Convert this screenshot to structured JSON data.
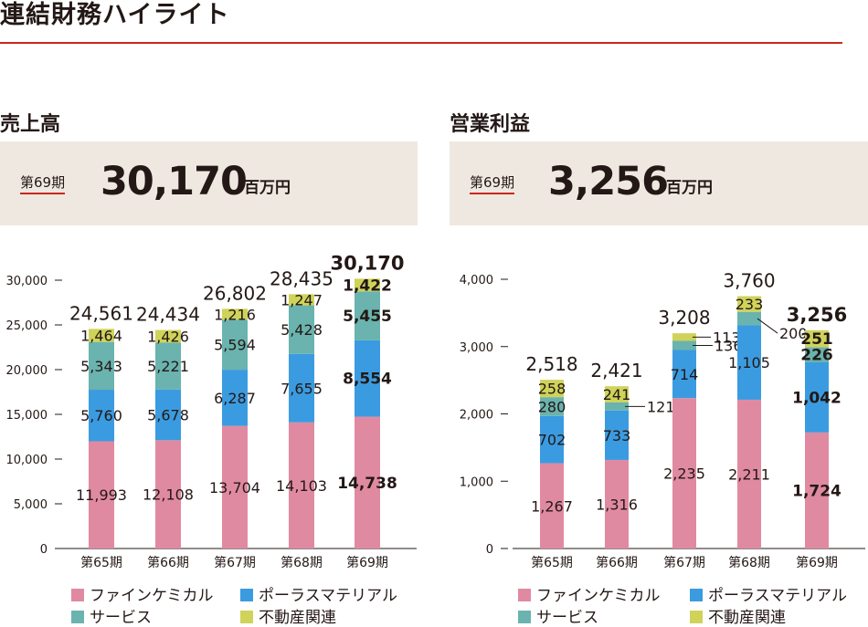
{
  "page_title": "連結財務ハイライト",
  "colors": {
    "fine_chemical": "#e08aa1",
    "polar_material": "#3b9be0",
    "service": "#6ab3ae",
    "real_estate": "#cfd35a",
    "accent": "#c8281e",
    "box_bg": "#efe8e1"
  },
  "sales": {
    "section_title": "売上高",
    "summary": {
      "period": "第69期",
      "value": "30,170",
      "unit": "百万円"
    }
  },
  "profit": {
    "section_title": "営業利益",
    "summary": {
      "period": "第69期",
      "value": "3,256",
      "unit": "百万円"
    }
  },
  "legend": {
    "fine_chemical": "ファインケミカル",
    "polar_material": "ポーラスマテリアル",
    "service": "サービス",
    "real_estate": "不動産関連"
  },
  "chart_data": [
    {
      "type": "bar",
      "stacked": true,
      "title": "売上高",
      "categories": [
        "第65期",
        "第66期",
        "第67期",
        "第68期",
        "第69期"
      ],
      "ylim": [
        0,
        30000
      ],
      "yticks": [
        "0",
        "5,000",
        "10,000",
        "15,000",
        "20,000",
        "25,000",
        "30,000"
      ],
      "totals": [
        "24,561",
        "24,434",
        "26,802",
        "28,435",
        "30,170"
      ],
      "series": [
        {
          "name": "ファインケミカル",
          "values": [
            11993,
            12108,
            13704,
            14103,
            14738
          ],
          "labels": [
            "11,993",
            "12,108",
            "13,704",
            "14,103",
            "14,738"
          ]
        },
        {
          "name": "ポーラスマテリアル",
          "values": [
            5760,
            5678,
            6287,
            7655,
            8554
          ],
          "labels": [
            "5,760",
            "5,678",
            "6,287",
            "7,655",
            "8,554"
          ]
        },
        {
          "name": "サービス",
          "values": [
            5343,
            5221,
            5594,
            5428,
            5455
          ],
          "labels": [
            "5,343",
            "5,221",
            "5,594",
            "5,428",
            "5,455"
          ]
        },
        {
          "name": "不動産関連",
          "values": [
            1464,
            1426,
            1216,
            1247,
            1422
          ],
          "labels": [
            "1,464",
            "1,426",
            "1,216",
            "1,247",
            "1,422"
          ]
        }
      ]
    },
    {
      "type": "bar",
      "stacked": true,
      "title": "営業利益",
      "categories": [
        "第65期",
        "第66期",
        "第67期",
        "第68期",
        "第69期"
      ],
      "ylim": [
        0,
        4000
      ],
      "yticks": [
        "0",
        "1,000",
        "2,000",
        "3,000",
        "4,000"
      ],
      "totals": [
        "2,518",
        "2,421",
        "3,208",
        "3,760",
        "3,256"
      ],
      "series": [
        {
          "name": "ファインケミカル",
          "values": [
            1267,
            1316,
            2235,
            2211,
            1724
          ],
          "labels": [
            "1,267",
            "1,316",
            "2,235",
            "2,211",
            "1,724"
          ]
        },
        {
          "name": "ポーラスマテリアル",
          "values": [
            702,
            733,
            714,
            1105,
            1042
          ],
          "labels": [
            "702",
            "733",
            "714",
            "1,105",
            "1,042"
          ]
        },
        {
          "name": "サービス",
          "values": [
            280,
            121,
            136,
            200,
            226
          ],
          "labels": [
            "280",
            "121",
            "136",
            "200",
            "226"
          ]
        },
        {
          "name": "不動産関連",
          "values": [
            258,
            241,
            113,
            233,
            251
          ],
          "labels": [
            "258",
            "241",
            "113",
            "233",
            "251"
          ]
        }
      ]
    }
  ]
}
